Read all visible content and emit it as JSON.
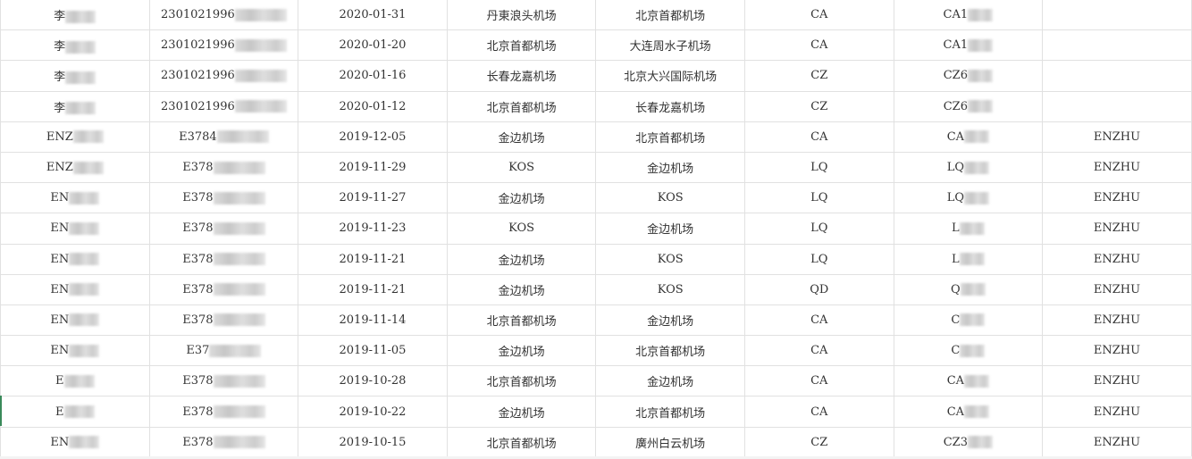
{
  "rows": [
    [
      "李",
      "2301021996",
      "2020-01-31",
      "丹東浪头机场",
      "北京首都机场",
      "CA",
      "CA1",
      ""
    ],
    [
      "李",
      "2301021996",
      "2020-01-20",
      "北京首都机场",
      "大连周水子机场",
      "CA",
      "CA1",
      ""
    ],
    [
      "李",
      "2301021996",
      "2020-01-16",
      "长春龙嘉机场",
      "北京大兴国际机场",
      "CZ",
      "CZ6",
      ""
    ],
    [
      "李",
      "2301021996",
      "2020-01-12",
      "北京首都机场",
      "长春龙嘉机场",
      "CZ",
      "CZ6",
      ""
    ],
    [
      "ENZ",
      "E3784",
      "2019-12-05",
      "金边机场",
      "北京首都机场",
      "CA",
      "CA",
      "ENZHU"
    ],
    [
      "ENZ",
      "E378",
      "2019-11-29",
      "KOS",
      "金边机场",
      "LQ",
      "LQ",
      "ENZHU"
    ],
    [
      "EN",
      "E378",
      "2019-11-27",
      "金边机场",
      "KOS",
      "LQ",
      "LQ",
      "ENZHU"
    ],
    [
      "EN",
      "E378",
      "2019-11-23",
      "KOS",
      "金边机场",
      "LQ",
      "L",
      "ENZHU"
    ],
    [
      "EN",
      "E378",
      "2019-11-21",
      "金边机场",
      "KOS",
      "LQ",
      "L",
      "ENZHU"
    ],
    [
      "EN",
      "E378",
      "2019-11-21",
      "金边机场",
      "KOS",
      "QD",
      "Q",
      "ENZHU"
    ],
    [
      "EN",
      "E378",
      "2019-11-14",
      "北京首都机场",
      "金边机场",
      "CA",
      "C",
      "ENZHU"
    ],
    [
      "EN",
      "E37",
      "2019-11-05",
      "金边机场",
      "北京首都机场",
      "CA",
      "C",
      "ENZHU"
    ],
    [
      "E",
      "E378",
      "2019-10-28",
      "北京首都机场",
      "金边机场",
      "CA",
      "CA",
      "ENZHU"
    ],
    [
      "E",
      "E378",
      "2019-10-22",
      "金边机场",
      "北京首都机场",
      "CA",
      "CA",
      "ENZHU"
    ],
    [
      "EN",
      "E378",
      "2019-10-15",
      "北京首都机场",
      "廣州白云机场",
      "CZ",
      "CZ3",
      "ENZHU"
    ]
  ],
  "redacted_columns": [
    0,
    1,
    6
  ],
  "colors": {
    "grid": "#e1e1e1",
    "text": "#333333",
    "active_row_marker": "#3a8a5a"
  }
}
